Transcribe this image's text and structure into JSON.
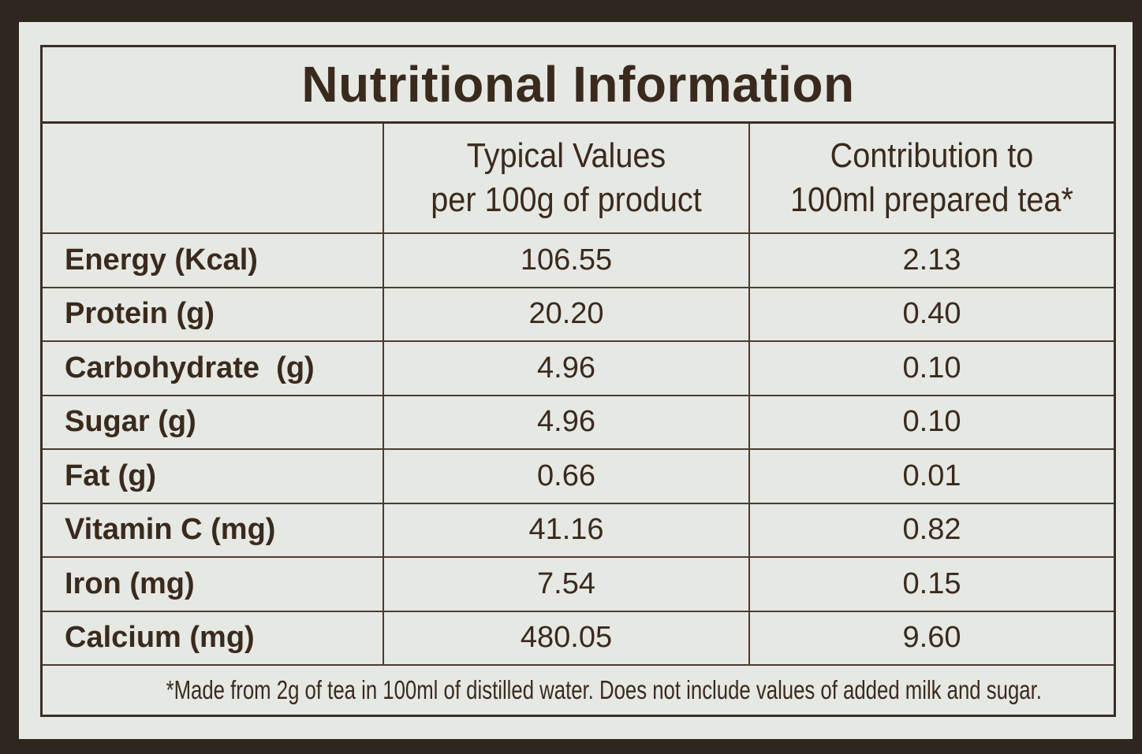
{
  "title": "Nutritional Information",
  "columns": {
    "typical_values": "Typical Values per 100g of product",
    "typical_values_line1": "Typical Values",
    "typical_values_line2": "per 100g of product",
    "contribution_line1": "Contribution to",
    "contribution_line2": "100ml prepared tea*"
  },
  "rows": [
    {
      "label": "Energy (Kcal)",
      "per_100g": "106.55",
      "per_100ml": "2.13"
    },
    {
      "label": "Protein (g)",
      "per_100g": "20.20",
      "per_100ml": "0.40"
    },
    {
      "label": "Carbohydrate  (g)",
      "per_100g": "4.96",
      "per_100ml": "0.10"
    },
    {
      "label": "Sugar (g)",
      "per_100g": "4.96",
      "per_100ml": "0.10"
    },
    {
      "label": "Fat (g)",
      "per_100g": "0.66",
      "per_100ml": "0.01"
    },
    {
      "label": "Vitamin C (mg)",
      "per_100g": "41.16",
      "per_100ml": "0.82"
    },
    {
      "label": "Iron (mg)",
      "per_100g": "7.54",
      "per_100ml": "0.15"
    },
    {
      "label": "Calcium (mg)",
      "per_100g": "480.05",
      "per_100ml": "9.60"
    }
  ],
  "footnote": "*Made from 2g of tea in 100ml of distilled water. Does not include values of added milk and sugar.",
  "colors": {
    "background": "#2e261f",
    "card": "#e6e8e3",
    "text": "#3a2a1e",
    "lines": "#3a2e24"
  }
}
